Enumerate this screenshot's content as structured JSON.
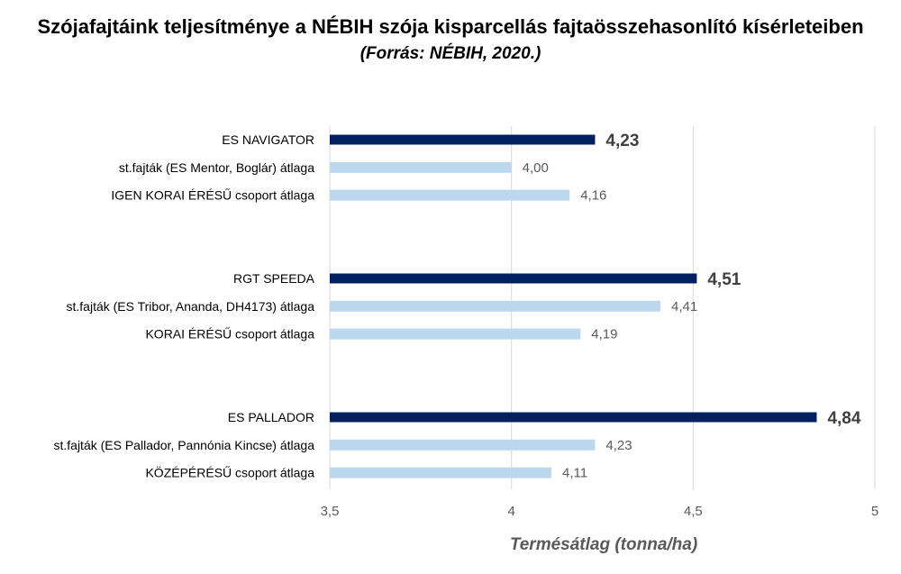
{
  "chart_data": {
    "type": "bar",
    "orientation": "horizontal",
    "title": "Szójafajtáink teljesítménye a NÉBIH szója kisparcellás fajtaösszehasonlító kísérleteiben",
    "subtitle": "(Forrás: NÉBIH, 2020.)",
    "xlabel": "Termésátlag (tonna/ha)",
    "xlim": [
      3.5,
      5
    ],
    "xticks": [
      3.5,
      4,
      4.5,
      5
    ],
    "xtick_labels": [
      "3,5",
      "4",
      "4,5",
      "5"
    ],
    "grid": "vertical",
    "colors": {
      "highlight": "#002060",
      "reference": "#BDD7EE"
    },
    "groups": [
      {
        "bars": [
          {
            "label": "ES NAVIGATOR",
            "value": 4.23,
            "value_label": "4,23",
            "highlight": true
          },
          {
            "label": "st.fajták (ES Mentor, Boglár) átlaga",
            "value": 4.0,
            "value_label": "4,00",
            "highlight": false
          },
          {
            "label": "IGEN KORAI ÉRÉSŰ csoport átlaga",
            "value": 4.16,
            "value_label": "4,16",
            "highlight": false
          }
        ]
      },
      {
        "bars": [
          {
            "label": "RGT SPEEDA",
            "value": 4.51,
            "value_label": "4,51",
            "highlight": true
          },
          {
            "label": "st.fajták (ES Tribor, Ananda, DH4173) átlaga",
            "value": 4.41,
            "value_label": "4,41",
            "highlight": false
          },
          {
            "label": "KORAI ÉRÉSŰ csoport átlaga",
            "value": 4.19,
            "value_label": "4,19",
            "highlight": false
          }
        ]
      },
      {
        "bars": [
          {
            "label": "ES PALLADOR",
            "value": 4.84,
            "value_label": "4,84",
            "highlight": true
          },
          {
            "label": "st.fajták (ES Pallador, Pannónia Kincse) átlaga",
            "value": 4.23,
            "value_label": "4,23",
            "highlight": false
          },
          {
            "label": "KÖZÉPÉRÉSŰ csoport átlaga",
            "value": 4.11,
            "value_label": "4,11",
            "highlight": false
          }
        ]
      }
    ]
  }
}
